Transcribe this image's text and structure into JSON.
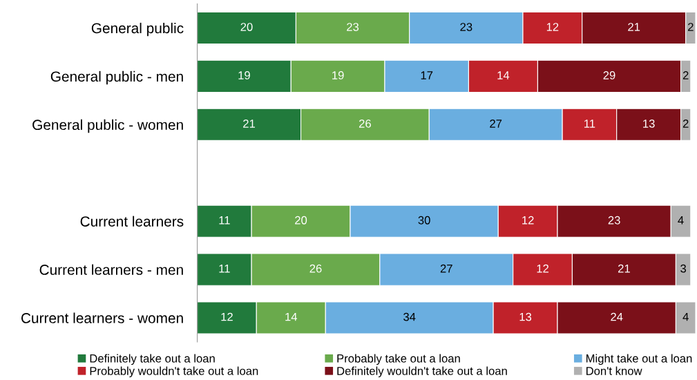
{
  "chart_data": {
    "type": "bar",
    "orientation": "horizontal",
    "stacked": true,
    "data_labels": true,
    "grid": false,
    "legend": "bottom",
    "tick_labels": "y",
    "xlim": [
      0,
      101
    ],
    "categories": [
      "General public",
      "General public - men",
      "General public - women",
      null,
      "Current learners",
      "Current learners - men",
      "Current learners - women"
    ],
    "series": [
      {
        "name": "Definitely take out a loan",
        "color": "#217a3c",
        "values": [
          20,
          19,
          21,
          null,
          11,
          11,
          12
        ]
      },
      {
        "name": "Probably take out a loan",
        "color": "#6aaa4c",
        "values": [
          23,
          19,
          26,
          null,
          20,
          26,
          14
        ]
      },
      {
        "name": "Might take out a loan",
        "color": "#6aaee0",
        "values": [
          23,
          17,
          27,
          null,
          30,
          27,
          34
        ]
      },
      {
        "name": "Probably wouldn't take out a loan",
        "color": "#c0222a",
        "values": [
          12,
          14,
          11,
          null,
          12,
          12,
          13
        ]
      },
      {
        "name": "Definitely wouldn't take out a loan",
        "color": "#7b1019",
        "values": [
          21,
          29,
          13,
          null,
          23,
          21,
          24
        ]
      },
      {
        "name": "Don't know",
        "color": "#b0b0b0",
        "values": [
          2,
          2,
          2,
          null,
          4,
          3,
          4
        ]
      }
    ]
  }
}
